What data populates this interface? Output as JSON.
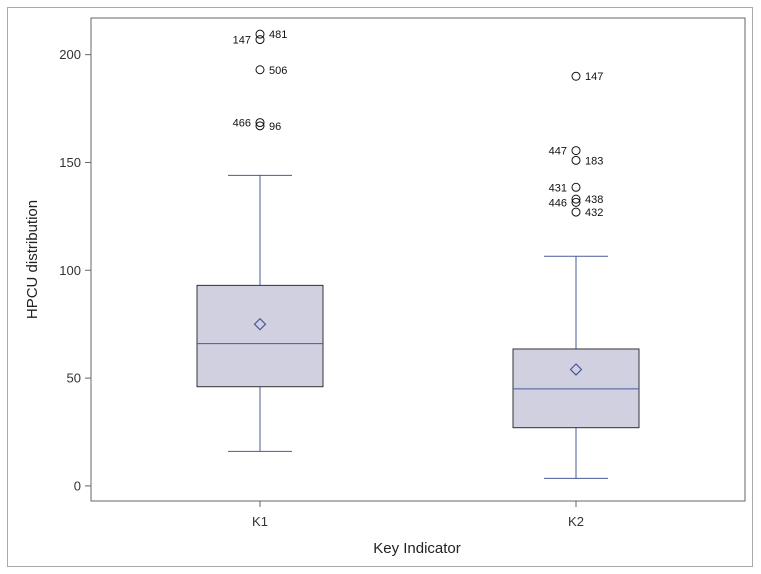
{
  "chart_data": {
    "type": "box",
    "title": "",
    "xlabel": "Key Indicator",
    "ylabel": "HPCU distribution",
    "ylim": [
      -7,
      217
    ],
    "yticks": [
      0,
      50,
      100,
      150,
      200
    ],
    "grid": false,
    "legend": "none",
    "categories": [
      "K1",
      "K2"
    ],
    "boxes": [
      {
        "category": "K1",
        "whisker_low": 16,
        "q1": 46,
        "median": 66,
        "q3": 93,
        "whisker_high": 144,
        "mean": 75,
        "outliers": [
          {
            "y": 209.5,
            "label": "481",
            "side": "right"
          },
          {
            "y": 207,
            "label": "147",
            "side": "left"
          },
          {
            "y": 193,
            "label": "506",
            "side": "right"
          },
          {
            "y": 168.5,
            "label": "466",
            "side": "left"
          },
          {
            "y": 167,
            "label": "96",
            "side": "right"
          }
        ]
      },
      {
        "category": "K2",
        "whisker_low": 3.5,
        "q1": 27,
        "median": 45,
        "q3": 63.5,
        "whisker_high": 106.5,
        "mean": 54,
        "outliers": [
          {
            "y": 190,
            "label": "147",
            "side": "right"
          },
          {
            "y": 155.5,
            "label": "447",
            "side": "left"
          },
          {
            "y": 151,
            "label": "183",
            "side": "right"
          },
          {
            "y": 138.5,
            "label": "431",
            "side": "left"
          },
          {
            "y": 133,
            "label": "438",
            "side": "right"
          },
          {
            "y": 131.5,
            "label": "446",
            "side": "left"
          },
          {
            "y": 127,
            "label": "432",
            "side": "right"
          }
        ]
      }
    ],
    "colors": {
      "box_fill": "#d0d0e0",
      "box_edge": "#333333",
      "whisker": "#4a5a9a",
      "median": "#4a5a9a",
      "mean_marker": "#4a5a9a",
      "outlier": "#111111",
      "axis": "#666666"
    }
  }
}
